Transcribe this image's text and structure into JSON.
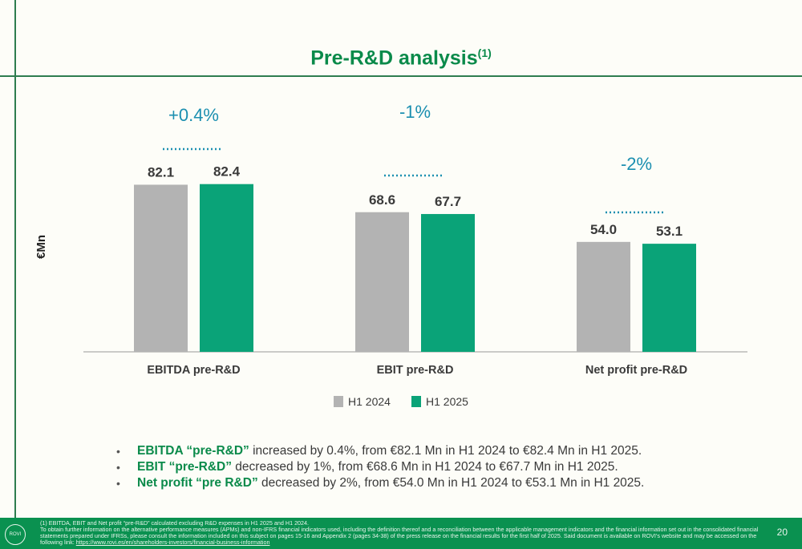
{
  "title": "Pre-R&D analysis",
  "title_sup": "(1)",
  "chart_data": {
    "type": "bar",
    "ylabel": "€Mn",
    "categories": [
      "EBITDA pre-R&D",
      "EBIT pre-R&D",
      "Net profit pre-R&D"
    ],
    "series": [
      {
        "name": "H1 2024",
        "color": "#b3b3b3",
        "values": [
          82.1,
          68.6,
          54.0
        ],
        "labels": [
          "82.1",
          "68.6",
          "54.0"
        ]
      },
      {
        "name": "H1 2025",
        "color": "#0aa378",
        "values": [
          82.4,
          67.7,
          53.1
        ],
        "labels": [
          "82.4",
          "67.7",
          "53.1"
        ]
      }
    ],
    "changes": [
      "+0.4%",
      "-1%",
      "-2%"
    ],
    "ylim": [
      0,
      100
    ],
    "grid": false,
    "legend": "bottom"
  },
  "bullets": [
    {
      "bold": "EBITDA “pre-R&D”",
      "text": " increased by 0.4%, from €82.1 Mn in H1 2024 to €82.4 Mn in H1 2025."
    },
    {
      "bold": "EBIT “pre-R&D”",
      "text": " decreased by 1%, from €68.6 Mn in H1 2024 to €67.7 Mn in H1 2025."
    },
    {
      "bold": "Net profit “pre R&D”",
      "text": " decreased by 2%, from €54.0 Mn in H1 2024 to €53.1 Mn in H1 2025."
    }
  ],
  "footer": {
    "logo": "ROVI",
    "line1": "(1) EBITDA, EBIT and Net profit “pre-R&D” calculated excluding R&D expenses in H1 2025 and H1 2024.",
    "line2": "To obtain further information on the alternative performance measures (APMs) and non-IFRS financial indicators used, including the definition thereof and a reconciliation between the applicable management indicators and the financial information set out in the consolidated financial statements prepared under IFRSs, please consult the information included on this subject on pages 15-16 and Appendix 2 (pages 34-38) of the press release on the financial results for the first half of 2025. Said document is available on ROVI’s website and may be accessed on the following link: ",
    "link": "https://www.rovi.es/en/shareholders-investors/financial-business-information",
    "page": "20"
  }
}
